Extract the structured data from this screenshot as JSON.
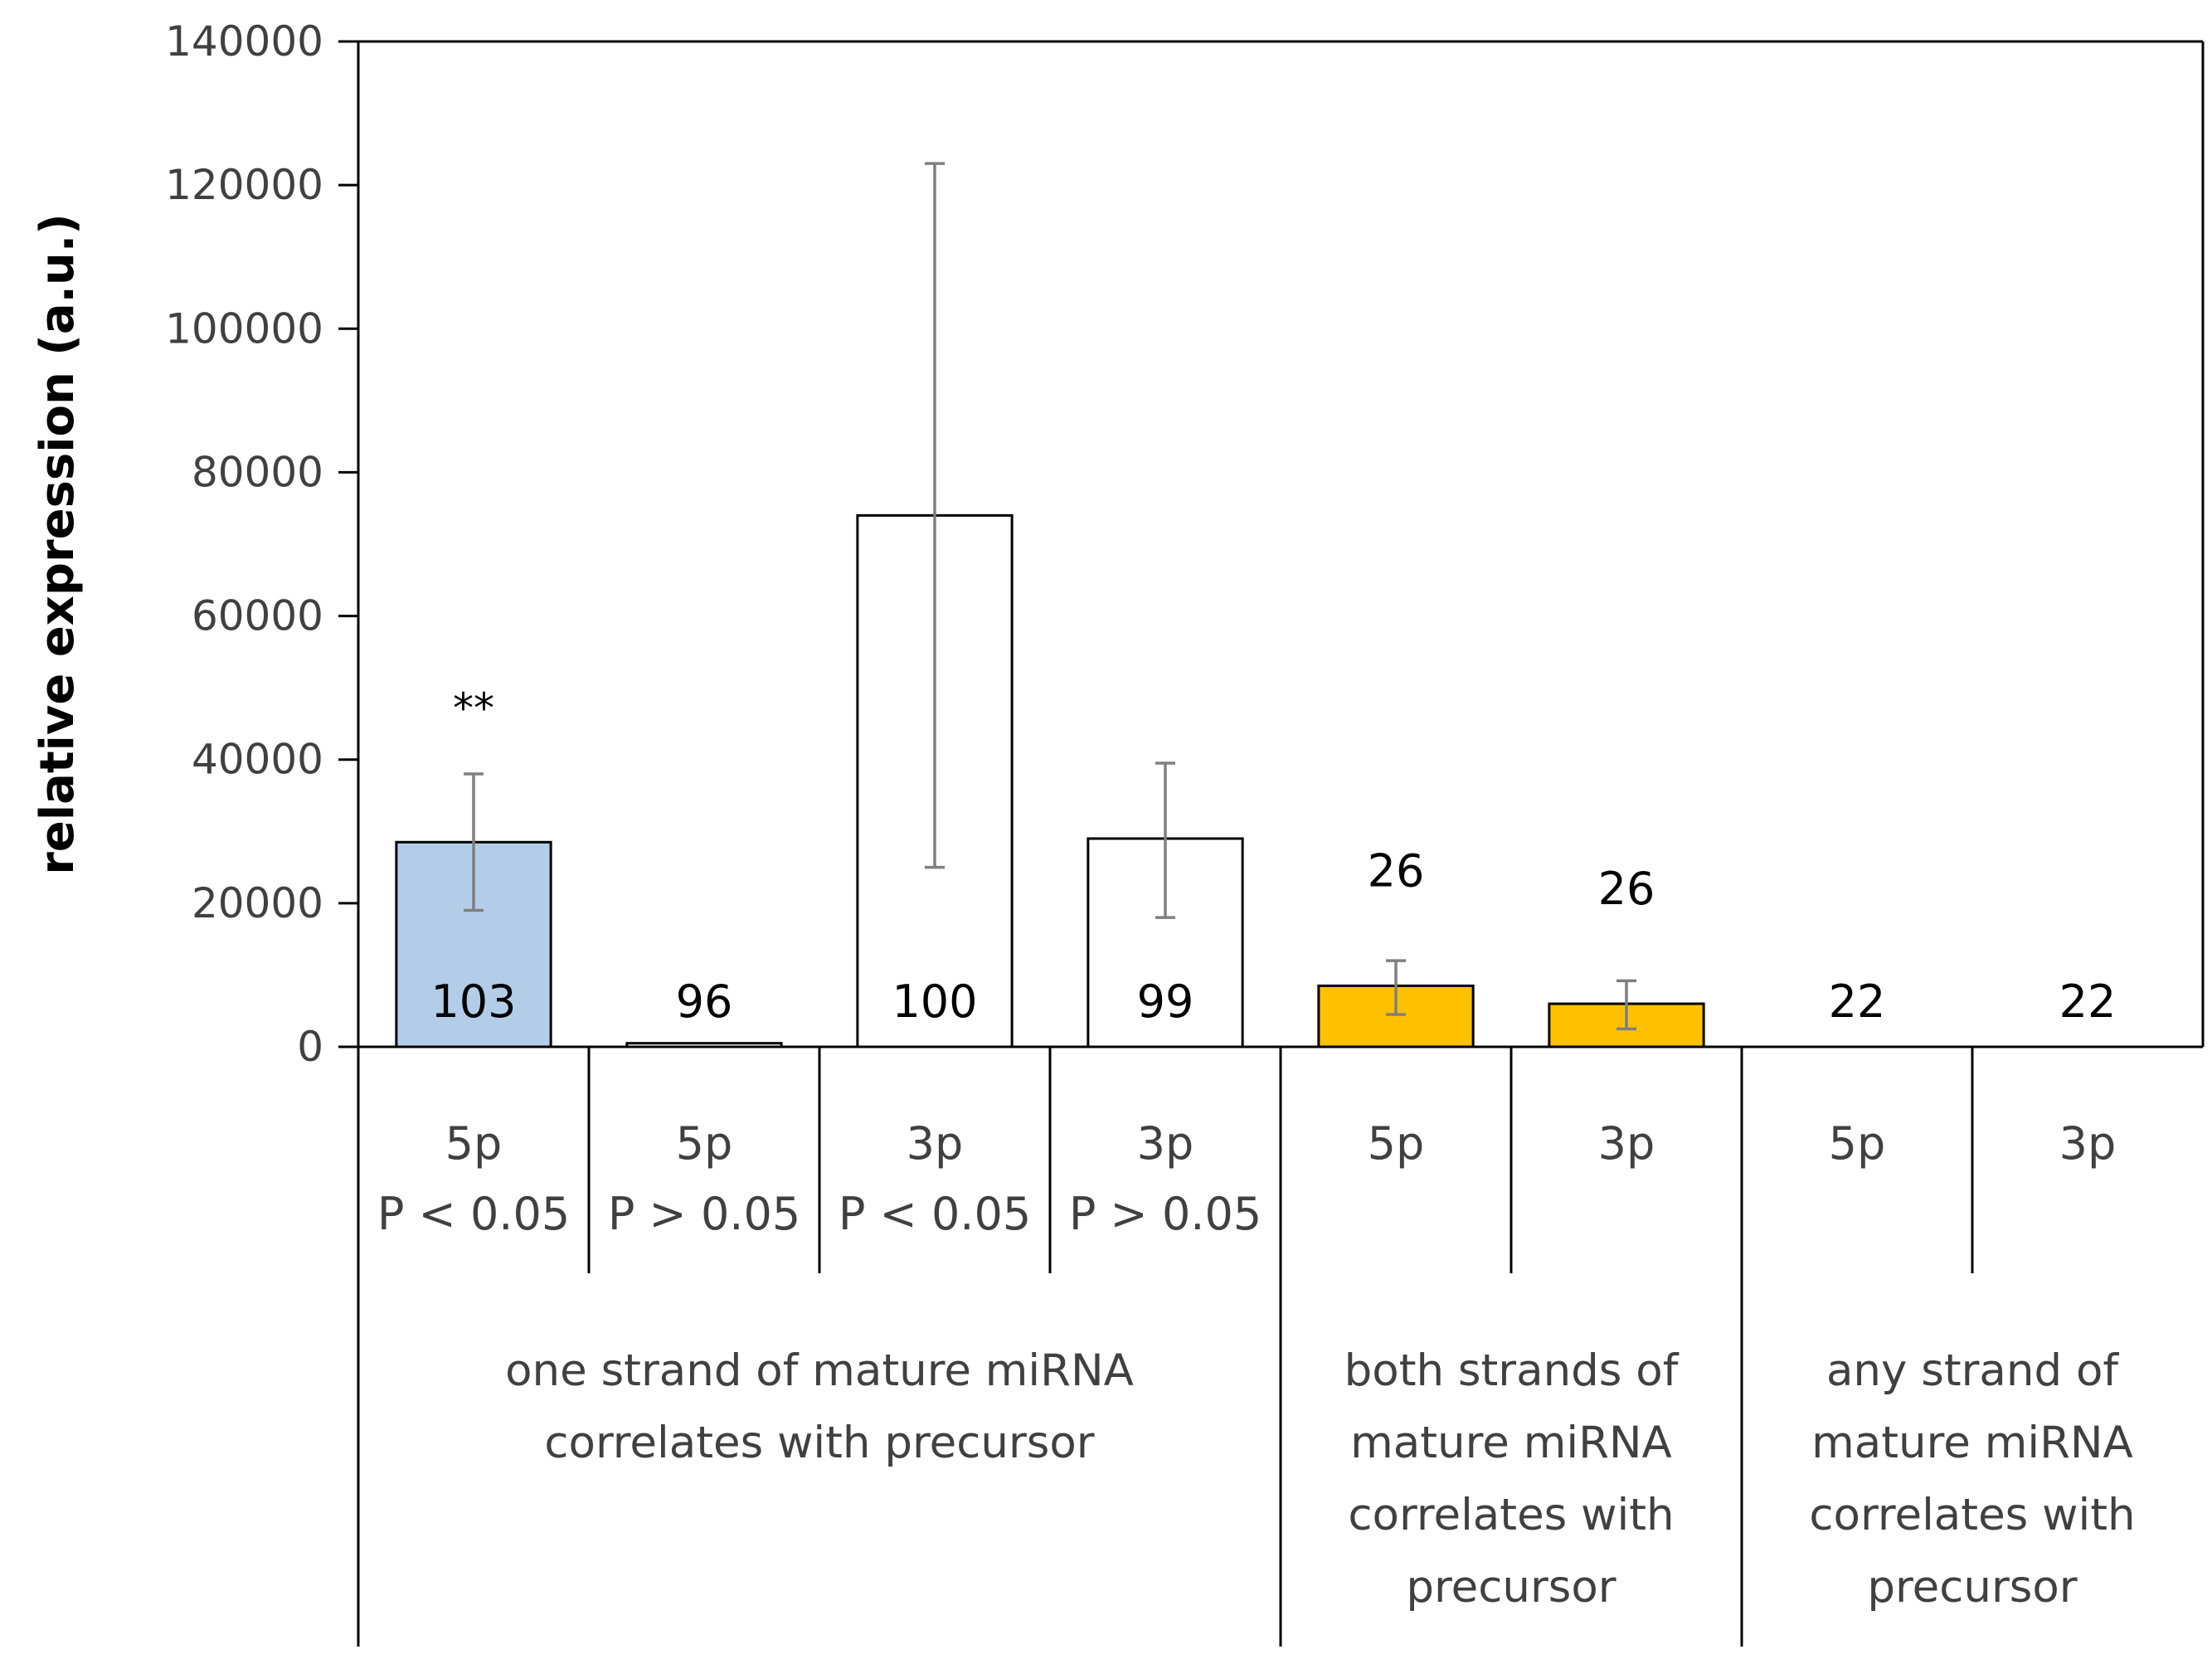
{
  "chart_data": {
    "type": "bar",
    "title": "",
    "xlabel": "",
    "ylabel": "relative expression (a.u.)",
    "ylim": [
      0,
      140000
    ],
    "yticks": [
      0,
      20000,
      40000,
      60000,
      80000,
      100000,
      120000,
      140000
    ],
    "grid": false,
    "legend": "none",
    "bars": [
      {
        "strand": "5p",
        "pval": "P < 0.05",
        "value": 28500,
        "err_low": 19000,
        "err_high": 38000,
        "count": "103",
        "count_position": "inside",
        "sig": "**",
        "color": "#b3cde8"
      },
      {
        "strand": "5p",
        "pval": "P > 0.05",
        "value": 500,
        "err_low": 300,
        "err_high": 700,
        "count": "96",
        "count_position": "inside",
        "sig": "",
        "color": "#ffffff"
      },
      {
        "strand": "3p",
        "pval": "P < 0.05",
        "value": 74000,
        "err_low": 25000,
        "err_high": 123000,
        "count": "100",
        "count_position": "inside",
        "sig": "",
        "color": "#ffffff"
      },
      {
        "strand": "3p",
        "pval": "P > 0.05",
        "value": 29000,
        "err_low": 18000,
        "err_high": 39500,
        "count": "99",
        "count_position": "inside",
        "sig": "",
        "color": "#ffffff"
      },
      {
        "strand": "5p",
        "pval": "",
        "value": 8500,
        "err_low": 4500,
        "err_high": 12000,
        "count": "26",
        "count_position": "above",
        "sig": "",
        "color": "#ffc000"
      },
      {
        "strand": "3p",
        "pval": "",
        "value": 6000,
        "err_low": 2500,
        "err_high": 9200,
        "count": "26",
        "count_position": "above",
        "sig": "",
        "color": "#ffc000"
      },
      {
        "strand": "5p",
        "pval": "",
        "value": 0,
        "err_low": null,
        "err_high": null,
        "count": "22",
        "count_position": "inside",
        "sig": "",
        "color": "#ffffff"
      },
      {
        "strand": "3p",
        "pval": "",
        "value": 0,
        "err_low": null,
        "err_high": null,
        "count": "22",
        "count_position": "inside",
        "sig": "",
        "color": "#ffffff"
      }
    ],
    "groups": [
      {
        "lines": [
          "one strand of mature miRNA",
          "correlates with precursor"
        ],
        "span": [
          0,
          3
        ]
      },
      {
        "lines": [
          "both strands of",
          "mature miRNA",
          "correlates with",
          "precursor"
        ],
        "span": [
          4,
          5
        ]
      },
      {
        "lines": [
          "any strand of",
          "mature miRNA",
          "correlates with",
          "precursor"
        ],
        "span": [
          6,
          7
        ]
      }
    ]
  }
}
